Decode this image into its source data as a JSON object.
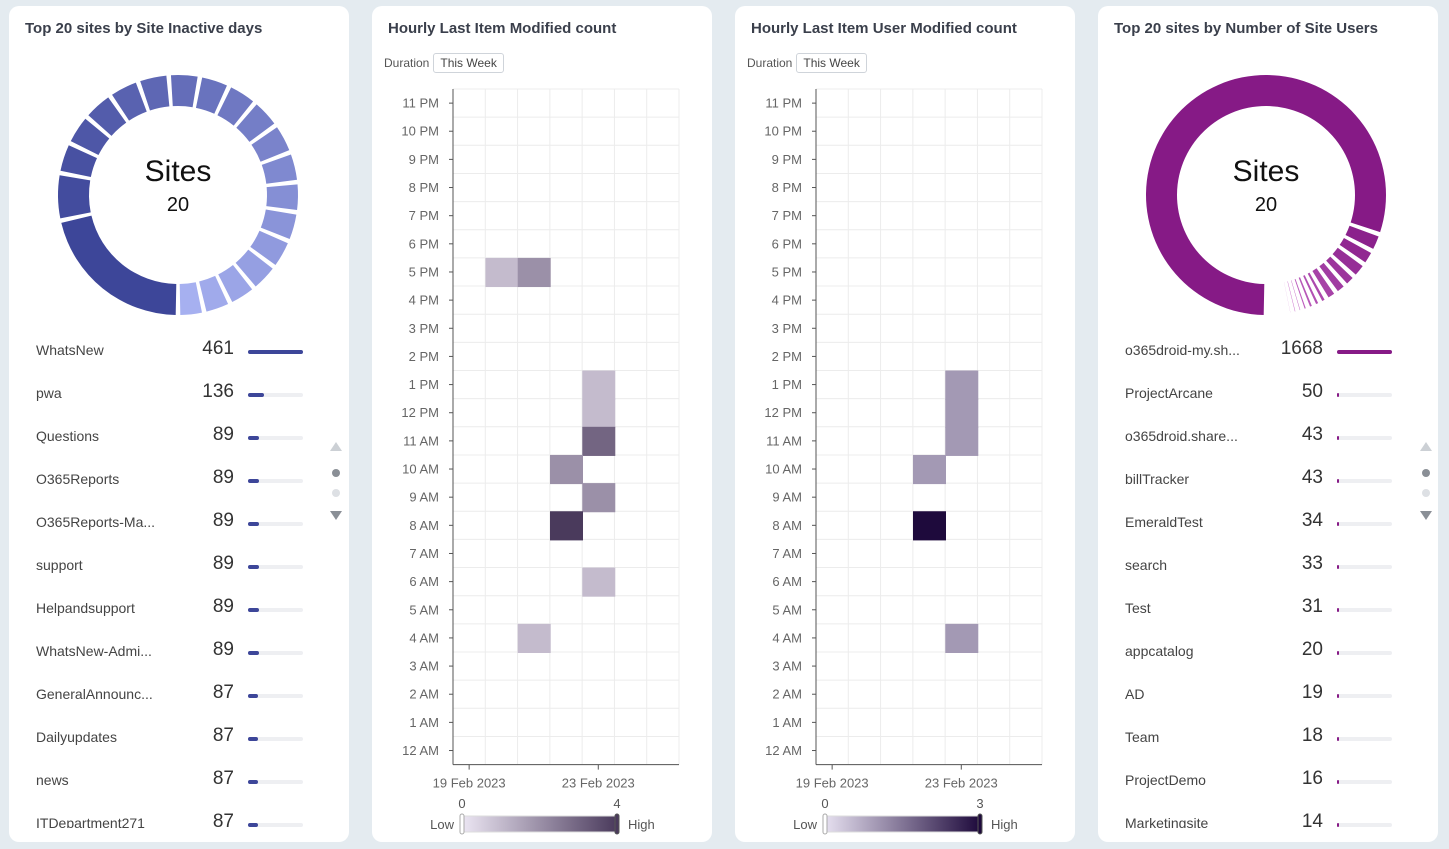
{
  "panels": {
    "inactive": {
      "title": "Top 20 sites by Site Inactive days",
      "center_label": "Sites",
      "center_value": "20",
      "color": "#3d4699"
    },
    "item_modified": {
      "title": "Hourly Last Item Modified count",
      "duration_label": "Duration",
      "duration_value": "This Week"
    },
    "user_modified": {
      "title": "Hourly Last Item User Modified count",
      "duration_label": "Duration",
      "duration_value": "This Week"
    },
    "users": {
      "title": "Top 20 sites by Number of Site Users",
      "center_label": "Sites",
      "center_value": "20",
      "color": "#861a86"
    }
  },
  "chart_data": [
    {
      "type": "donut",
      "id": "inactive",
      "title": "Top 20 sites by Site Inactive days",
      "rows": [
        {
          "label": "WhatsNew",
          "value": 461
        },
        {
          "label": "pwa",
          "value": 136
        },
        {
          "label": "Questions",
          "value": 89
        },
        {
          "label": "O365Reports",
          "value": 89
        },
        {
          "label": "O365Reports-Ma...",
          "value": 89
        },
        {
          "label": "support",
          "value": 89
        },
        {
          "label": "Helpandsupport",
          "value": 89
        },
        {
          "label": "WhatsNew-Admi...",
          "value": 89
        },
        {
          "label": "GeneralAnnounc...",
          "value": 87
        },
        {
          "label": "Dailyupdates",
          "value": 87
        },
        {
          "label": "news",
          "value": 87
        },
        {
          "label": "ITDepartment271",
          "value": 87
        }
      ],
      "hidden_slice_values": [
        87,
        86,
        85,
        84,
        83,
        80,
        78,
        75
      ]
    },
    {
      "type": "heatmap",
      "id": "item_modified",
      "title": "Hourly Last Item Modified count",
      "y_categories": [
        "12 AM",
        "1 AM",
        "2 AM",
        "3 AM",
        "4 AM",
        "5 AM",
        "6 AM",
        "7 AM",
        "8 AM",
        "9 AM",
        "10 AM",
        "11 AM",
        "12 PM",
        "1 PM",
        "2 PM",
        "3 PM",
        "4 PM",
        "5 PM",
        "6 PM",
        "7 PM",
        "8 PM",
        "9 PM",
        "10 PM",
        "11 PM"
      ],
      "x_ticks": [
        {
          "label": "19 Feb 2023",
          "col": 0
        },
        {
          "label": "23 Feb 2023",
          "col": 4
        }
      ],
      "x_columns": 7,
      "cells": [
        {
          "col": 1,
          "hour": 17,
          "value": 1
        },
        {
          "col": 2,
          "hour": 17,
          "value": 2
        },
        {
          "col": 4,
          "hour": 13,
          "value": 1
        },
        {
          "col": 4,
          "hour": 12,
          "value": 1
        },
        {
          "col": 4,
          "hour": 11,
          "value": 3
        },
        {
          "col": 3,
          "hour": 10,
          "value": 2
        },
        {
          "col": 4,
          "hour": 9,
          "value": 2
        },
        {
          "col": 3,
          "hour": 8,
          "value": 4
        },
        {
          "col": 4,
          "hour": 6,
          "value": 1
        },
        {
          "col": 2,
          "hour": 4,
          "value": 1
        }
      ],
      "legend": {
        "min": "0",
        "max": "4",
        "low_label": "Low",
        "high_label": "High",
        "colors": [
          "#ece6f3",
          "#4a3a5c"
        ]
      }
    },
    {
      "type": "heatmap",
      "id": "user_modified",
      "title": "Hourly Last Item User Modified count",
      "y_categories": [
        "12 AM",
        "1 AM",
        "2 AM",
        "3 AM",
        "4 AM",
        "5 AM",
        "6 AM",
        "7 AM",
        "8 AM",
        "9 AM",
        "10 AM",
        "11 AM",
        "12 PM",
        "1 PM",
        "2 PM",
        "3 PM",
        "4 PM",
        "5 PM",
        "6 PM",
        "7 PM",
        "8 PM",
        "9 PM",
        "10 PM",
        "11 PM"
      ],
      "x_ticks": [
        {
          "label": "19 Feb 2023",
          "col": 0
        },
        {
          "label": "23 Feb 2023",
          "col": 4
        }
      ],
      "x_columns": 7,
      "cells": [
        {
          "col": 4,
          "hour": 13,
          "value": 1
        },
        {
          "col": 4,
          "hour": 12,
          "value": 1
        },
        {
          "col": 4,
          "hour": 11,
          "value": 1
        },
        {
          "col": 3,
          "hour": 10,
          "value": 1
        },
        {
          "col": 3,
          "hour": 8,
          "value": 3
        },
        {
          "col": 4,
          "hour": 4,
          "value": 1
        }
      ],
      "legend": {
        "min": "0",
        "max": "3",
        "low_label": "Low",
        "high_label": "High",
        "colors": [
          "#e6e0f0",
          "#1e0a3c"
        ]
      }
    },
    {
      "type": "donut",
      "id": "users",
      "title": "Top 20 sites by Number of Site Users",
      "rows": [
        {
          "label": "o365droid-my.sh...",
          "value": 1668
        },
        {
          "label": "ProjectArcane",
          "value": 50
        },
        {
          "label": "o365droid.share...",
          "value": 43
        },
        {
          "label": "billTracker",
          "value": 43
        },
        {
          "label": "EmeraldTest",
          "value": 34
        },
        {
          "label": "search",
          "value": 33
        },
        {
          "label": "Test",
          "value": 31
        },
        {
          "label": "appcatalog",
          "value": 20
        },
        {
          "label": "AD",
          "value": 19
        },
        {
          "label": "Team",
          "value": 18
        },
        {
          "label": "ProjectDemo",
          "value": 16
        },
        {
          "label": "Marketingsite",
          "value": 14
        }
      ],
      "hidden_slice_values": [
        14,
        13,
        12,
        11,
        10,
        10,
        9,
        9
      ]
    }
  ]
}
